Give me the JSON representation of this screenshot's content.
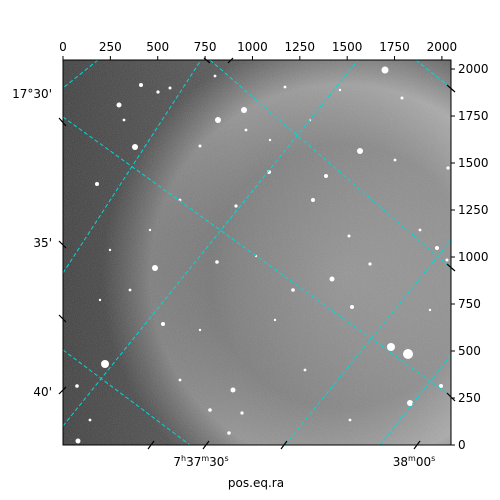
{
  "chart_data": {
    "type": "heatmap",
    "title": "",
    "xlabel": "pos.eq.ra",
    "ylabel": "",
    "pixel_axes": {
      "x_range": [
        0,
        2048
      ],
      "y_range": [
        0,
        2048
      ],
      "top_ticks": [
        "0",
        "250",
        "500",
        "750",
        "1000",
        "1250",
        "1500",
        "1750",
        "2000"
      ],
      "top_tick_values": [
        0,
        250,
        500,
        750,
        1000,
        1250,
        1500,
        1750,
        2000
      ],
      "right_ticks": [
        "0",
        "250",
        "500",
        "750",
        "1000",
        "1250",
        "1500",
        "1750",
        "2000"
      ],
      "right_tick_values": [
        0,
        250,
        500,
        750,
        1000,
        1250,
        1500,
        1750,
        2000
      ]
    },
    "world_axes": {
      "ra_tick_labels": [
        "7h37m30s",
        "38m00s"
      ],
      "dec_tick_labels": [
        "17°30'",
        "35'",
        "40'"
      ]
    },
    "grid": true,
    "grid_color": "#00d8d8",
    "colormap": "gray"
  }
}
